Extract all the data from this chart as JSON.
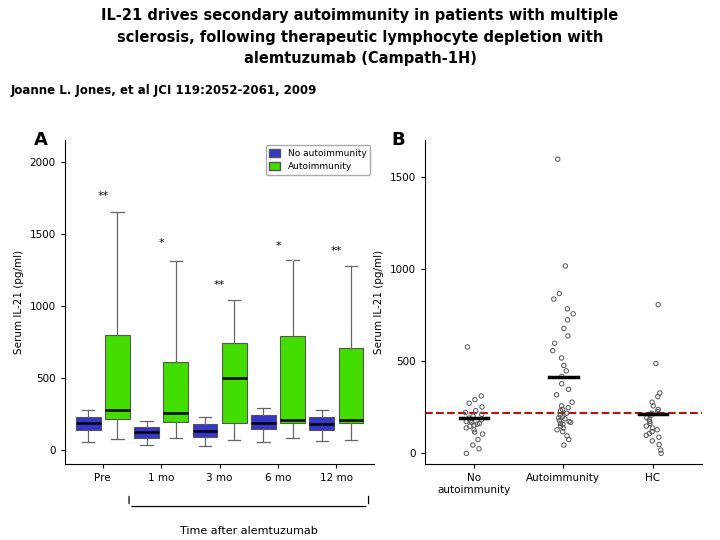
{
  "title_line1": "IL-21 drives secondary autoimmunity in patients with multiple",
  "title_line2": "sclerosis, following therapeutic lymphocyte depletion with",
  "title_line3": "alemtuzumab (Campath-1H)",
  "subtitle": "Joanne L. Jones, et al JCI 119:2052-2061, 2009",
  "panel_A_label": "A",
  "panel_B_label": "B",
  "panelA": {
    "xlabel": "Time after alemtuzumab",
    "ylabel": "Serum IL-21 (pg/ml)",
    "ylim": [
      -100,
      2150
    ],
    "yticks": [
      0,
      500,
      1000,
      1500,
      2000
    ],
    "categories": [
      "Pre",
      "1 mo",
      "3 mo",
      "6 mo",
      "12 mo"
    ],
    "blue_color": "#3636c8",
    "green_color": "#44dd00",
    "blue_boxes": [
      {
        "q1": 140,
        "med": 190,
        "q3": 230,
        "whislo": 55,
        "whishi": 280
      },
      {
        "q1": 85,
        "med": 125,
        "q3": 162,
        "whislo": 35,
        "whishi": 200
      },
      {
        "q1": 90,
        "med": 130,
        "q3": 180,
        "whislo": 30,
        "whishi": 230
      },
      {
        "q1": 148,
        "med": 188,
        "q3": 242,
        "whislo": 58,
        "whishi": 290
      },
      {
        "q1": 142,
        "med": 182,
        "q3": 232,
        "whislo": 62,
        "whishi": 278
      }
    ],
    "green_boxes": [
      {
        "q1": 215,
        "med": 275,
        "q3": 800,
        "whislo": 75,
        "whishi": 1650
      },
      {
        "q1": 195,
        "med": 255,
        "q3": 610,
        "whislo": 85,
        "whishi": 1310
      },
      {
        "q1": 190,
        "med": 500,
        "q3": 745,
        "whislo": 70,
        "whishi": 1040
      },
      {
        "q1": 190,
        "med": 210,
        "q3": 795,
        "whislo": 85,
        "whishi": 1320
      },
      {
        "q1": 190,
        "med": 210,
        "q3": 705,
        "whislo": 70,
        "whishi": 1280
      }
    ]
  },
  "panelB": {
    "ylabel": "Serum IL-21 (pg/ml)",
    "ylim": [
      -60,
      1700
    ],
    "yticks": [
      0,
      500,
      1000,
      1500
    ],
    "xtick_labels": [
      "No\nautoimmunity",
      "Autoimmunity",
      "HC"
    ],
    "dashed_line_y": 218,
    "dashed_color": "#bb1111",
    "dot_color": "#555555",
    "no_auto_median": 193,
    "auto_median": 415,
    "hc_median": 212,
    "no_auto_dots": [
      0,
      25,
      45,
      75,
      105,
      115,
      128,
      138,
      148,
      153,
      158,
      163,
      168,
      173,
      176,
      182,
      192,
      202,
      212,
      222,
      232,
      252,
      272,
      292,
      312,
      578
    ],
    "auto_dots": [
      45,
      75,
      95,
      118,
      128,
      138,
      148,
      158,
      163,
      168,
      173,
      178,
      188,
      193,
      198,
      208,
      218,
      232,
      238,
      248,
      258,
      278,
      318,
      348,
      378,
      418,
      448,
      478,
      518,
      558,
      598,
      638,
      678,
      725,
      758,
      785,
      838,
      868,
      1018,
      1598
    ],
    "hc_dots": [
      0,
      18,
      48,
      68,
      88,
      98,
      108,
      118,
      128,
      138,
      148,
      163,
      173,
      183,
      193,
      208,
      218,
      228,
      238,
      258,
      278,
      308,
      328,
      488,
      808
    ]
  }
}
